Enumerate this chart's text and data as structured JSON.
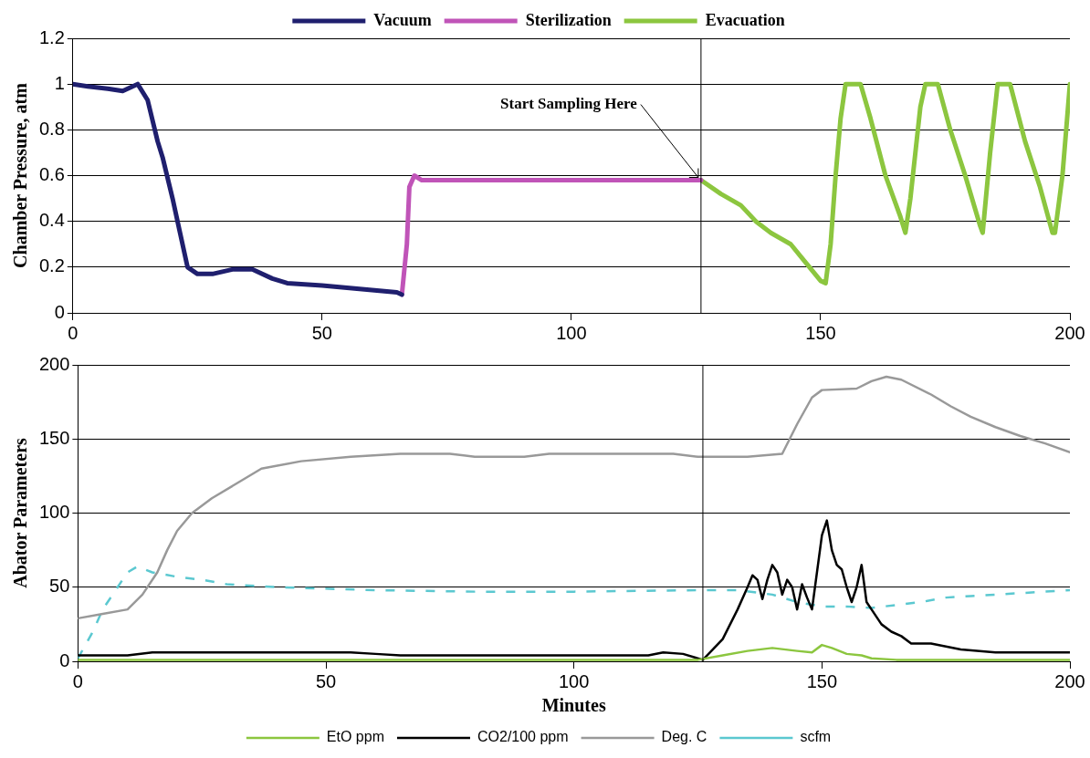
{
  "chart_data": [
    {
      "type": "line",
      "ylabel": "Chamber Pressure, atm",
      "xlim": [
        0,
        200
      ],
      "xticks": [
        0,
        50,
        100,
        150,
        200
      ],
      "ylim": [
        0,
        1.2
      ],
      "yticks": [
        0,
        0.2,
        0.4,
        0.6,
        0.8,
        1,
        1.2
      ],
      "grid": "y",
      "legend": "top",
      "marker": "none",
      "line_style": "solid",
      "ref_lines": [
        {
          "axis": "x",
          "value": 126,
          "color": "#000000"
        }
      ],
      "annotations": [
        {
          "text": "Start Sampling Here",
          "x": 126,
          "y": 0.58
        }
      ],
      "series": [
        {
          "name": "Vacuum",
          "color": "#1f1f6e",
          "x": [
            0,
            3,
            7,
            10,
            12,
            13,
            15,
            17,
            18,
            20,
            22,
            23,
            25,
            28,
            32,
            36,
            40,
            43,
            50,
            55,
            60,
            65,
            66
          ],
          "values": [
            1.0,
            0.99,
            0.98,
            0.97,
            0.99,
            1.0,
            0.93,
            0.75,
            0.68,
            0.5,
            0.3,
            0.2,
            0.17,
            0.17,
            0.19,
            0.19,
            0.15,
            0.13,
            0.12,
            0.11,
            0.1,
            0.09,
            0.08
          ]
        },
        {
          "name": "Sterilization",
          "color": "#c054b8",
          "x": [
            66,
            67,
            67.5,
            68.5,
            70,
            126
          ],
          "values": [
            0.08,
            0.3,
            0.55,
            0.6,
            0.58,
            0.58
          ]
        },
        {
          "name": "Evacuation",
          "color": "#8cc63f",
          "x": [
            126,
            130,
            134,
            137,
            140,
            144,
            147,
            150,
            151,
            152,
            153,
            154,
            155,
            158,
            160,
            163,
            166,
            167,
            168,
            170,
            171,
            173.5,
            176,
            179,
            182,
            182.5,
            184,
            185.5,
            188,
            191,
            194,
            196.5,
            197,
            198.5,
            200
          ],
          "values": [
            0.58,
            0.52,
            0.47,
            0.4,
            0.35,
            0.3,
            0.22,
            0.14,
            0.13,
            0.3,
            0.6,
            0.85,
            1.0,
            1.0,
            0.85,
            0.6,
            0.42,
            0.35,
            0.5,
            0.9,
            1.0,
            1.0,
            0.8,
            0.6,
            0.38,
            0.35,
            0.7,
            1.0,
            1.0,
            0.75,
            0.55,
            0.35,
            0.35,
            0.6,
            1.0
          ]
        }
      ]
    },
    {
      "type": "line",
      "xlabel": "Minutes",
      "ylabel": "Abator Parameters",
      "xlim": [
        0,
        200
      ],
      "xticks": [
        0,
        50,
        100,
        150,
        200
      ],
      "ylim": [
        0,
        200
      ],
      "yticks": [
        0,
        50,
        100,
        150,
        200
      ],
      "grid": "y",
      "legend": "bottom",
      "marker": "none",
      "ref_lines": [
        {
          "axis": "x",
          "value": 126,
          "color": "#000000"
        }
      ],
      "series": [
        {
          "name": "EtO ppm",
          "color": "#8cc63f",
          "line_style": "solid",
          "x": [
            0,
            125,
            130,
            135,
            140,
            145,
            148,
            150,
            152,
            155,
            158,
            160,
            165,
            200
          ],
          "values": [
            1,
            1,
            4,
            7,
            9,
            7,
            6,
            11,
            9,
            5,
            4,
            2,
            1,
            1
          ]
        },
        {
          "name": "CO2/100 ppm",
          "color": "#000000",
          "line_style": "solid",
          "x": [
            0,
            10,
            15,
            20,
            55,
            60,
            65,
            115,
            118,
            122,
            126,
            130,
            133,
            135,
            136,
            137,
            138,
            139,
            140,
            141,
            142,
            143,
            144,
            145,
            146,
            147,
            148,
            149,
            150,
            151,
            152,
            153,
            154,
            155,
            156,
            157,
            158,
            159,
            160,
            162,
            164,
            166,
            168,
            172,
            178,
            185,
            200
          ],
          "values": [
            4,
            4,
            6,
            6,
            6,
            5,
            4,
            4,
            6,
            5,
            1,
            15,
            35,
            50,
            58,
            55,
            42,
            55,
            65,
            60,
            45,
            55,
            50,
            35,
            52,
            43,
            35,
            60,
            85,
            95,
            75,
            65,
            62,
            50,
            40,
            50,
            65,
            40,
            35,
            25,
            20,
            17,
            12,
            12,
            8,
            6,
            6
          ]
        },
        {
          "name": "Deg. C",
          "color": "#999999",
          "line_style": "solid",
          "x": [
            0,
            5,
            10,
            13,
            16,
            18,
            20,
            23,
            27,
            32,
            37,
            45,
            55,
            65,
            75,
            80,
            90,
            95,
            115,
            120,
            125,
            135,
            142,
            145,
            148,
            150,
            157,
            160,
            163,
            166,
            172,
            176,
            180,
            185,
            190,
            195,
            200
          ],
          "values": [
            29,
            32,
            35,
            45,
            60,
            75,
            88,
            100,
            110,
            120,
            130,
            135,
            138,
            140,
            140,
            138,
            138,
            140,
            140,
            140,
            138,
            138,
            140,
            160,
            178,
            183,
            184,
            189,
            192,
            190,
            180,
            172,
            165,
            158,
            152,
            147,
            141
          ]
        },
        {
          "name": "scfm",
          "color": "#5bc8d0",
          "line_style": "dashed",
          "x": [
            0,
            3,
            5,
            7,
            10,
            12,
            15,
            20,
            25,
            30,
            40,
            50,
            60,
            80,
            100,
            126,
            133,
            140,
            145,
            150,
            155,
            160,
            165,
            170,
            175,
            180,
            190,
            200
          ],
          "values": [
            2,
            20,
            35,
            45,
            60,
            64,
            60,
            57,
            55,
            52,
            50,
            49,
            48,
            47,
            47,
            48,
            48,
            45,
            40,
            37,
            37,
            36,
            38,
            40,
            43,
            44,
            46,
            48
          ]
        }
      ]
    }
  ]
}
